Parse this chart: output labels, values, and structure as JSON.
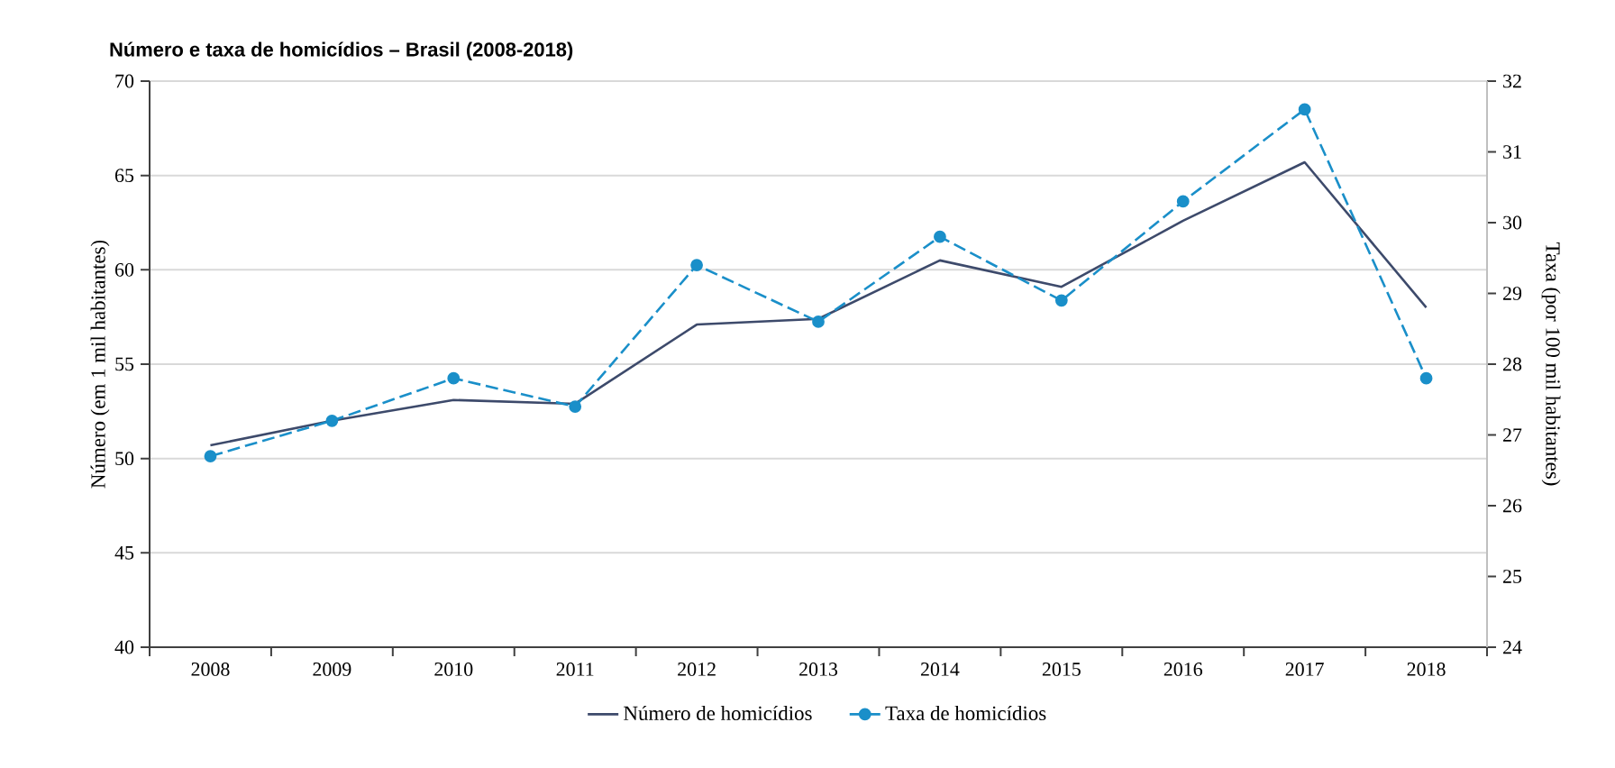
{
  "chart_data": {
    "type": "line",
    "title": "Número e taxa de homicídios – Brasil (2008-2018)",
    "ylabel": "Número (em 1 mil habitantes)",
    "y2label": "Taxa (por 100 mil habitantes)",
    "categories": [
      "2008",
      "2009",
      "2010",
      "2011",
      "2012",
      "2013",
      "2014",
      "2015",
      "2016",
      "2017",
      "2018"
    ],
    "series": [
      {
        "name": "Número de homicídios",
        "color": "#3d4a6b",
        "values": [
          50.7,
          52.0,
          53.1,
          52.9,
          57.1,
          57.4,
          60.5,
          59.1,
          62.6,
          65.7,
          58.0
        ],
        "marker": "none",
        "line_style": "solid"
      },
      {
        "name": "Taxa de homicídios",
        "color": "#1a8fc9",
        "axis": "y2",
        "values": [
          26.7,
          27.2,
          27.8,
          27.4,
          29.4,
          28.6,
          29.8,
          28.9,
          30.3,
          31.6,
          27.8
        ],
        "marker": "circle",
        "line_style": "dashed"
      }
    ],
    "ylim": [
      40,
      70
    ],
    "yticks": [
      40,
      45,
      50,
      55,
      60,
      65,
      70
    ],
    "y2lim": [
      24,
      32
    ],
    "y2ticks": [
      24,
      25,
      26,
      27,
      28,
      29,
      30,
      31,
      32
    ],
    "grid": "y",
    "legend": "bottom"
  }
}
